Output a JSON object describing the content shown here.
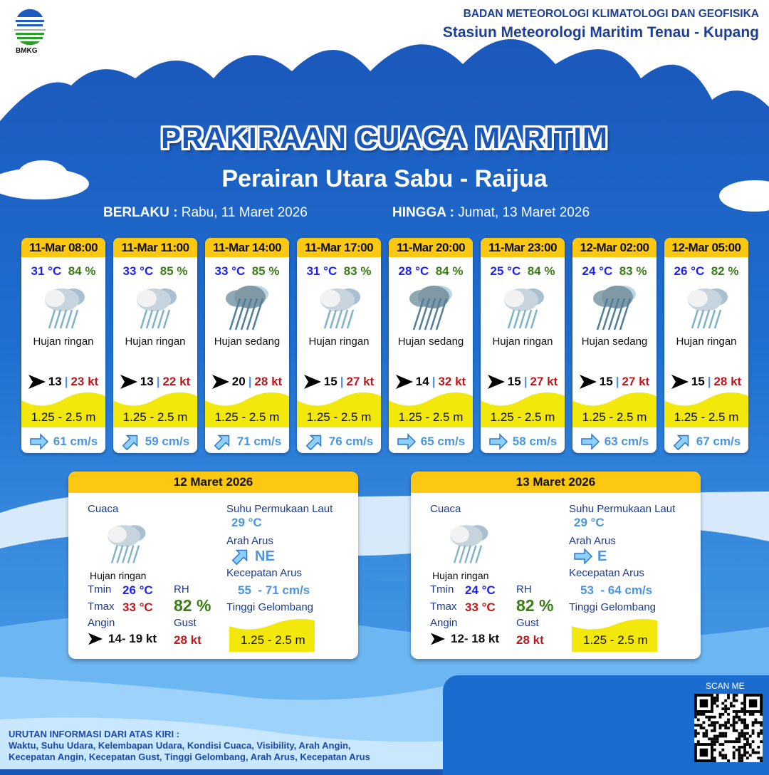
{
  "header": {
    "org": "BADAN METEOROLOGI KLIMATOLOGI DAN GEOFISIKA",
    "station": "Stasiun Meteorologi Maritim Tenau - Kupang",
    "logo_text": "BMKG"
  },
  "title": "PRAKIRAAN CUACA MARITIM",
  "area": "Perairan Utara Sabu - Raijua",
  "validity": {
    "from_label": "BERLAKU :",
    "from": "Rabu, 11 Maret 2026",
    "to_label": "HINGGA :",
    "to": "Jumat, 13 Maret 2026"
  },
  "colors": {
    "header_yellow": "#fcc812",
    "wave_yellow": "#f2e80c",
    "temp": "#1e22f0",
    "rh": "#3a7d14",
    "gust": "#c0171c",
    "current": "#4a95e0"
  },
  "forecasts": [
    {
      "time": "11-Mar 08:00",
      "temp": "31 °C",
      "rh": "84 %",
      "weather": "Hujan ringan",
      "icon": "light-rain",
      "wind_dir": "E",
      "wind": "13",
      "gust": "23 kt",
      "wave": "1.25 - 2.5 m",
      "current_dir": "E",
      "current": "61 cm/s"
    },
    {
      "time": "11-Mar 11:00",
      "temp": "33 °C",
      "rh": "85 %",
      "weather": "Hujan ringan",
      "icon": "light-rain",
      "wind_dir": "E",
      "wind": "13",
      "gust": "22 kt",
      "wave": "1.25 - 2.5 m",
      "current_dir": "NE",
      "current": "59 cm/s"
    },
    {
      "time": "11-Mar 14:00",
      "temp": "33 °C",
      "rh": "85 %",
      "weather": "Hujan sedang",
      "icon": "moderate-rain",
      "wind_dir": "E",
      "wind": "20",
      "gust": "28 kt",
      "wave": "1.25 - 2.5 m",
      "current_dir": "NE",
      "current": "71 cm/s"
    },
    {
      "time": "11-Mar 17:00",
      "temp": "31 °C",
      "rh": "83 %",
      "weather": "Hujan ringan",
      "icon": "light-rain",
      "wind_dir": "E",
      "wind": "15",
      "gust": "27 kt",
      "wave": "1.25 - 2.5 m",
      "current_dir": "NE",
      "current": "76 cm/s"
    },
    {
      "time": "11-Mar 20:00",
      "temp": "28 °C",
      "rh": "84 %",
      "weather": "Hujan sedang",
      "icon": "moderate-rain",
      "wind_dir": "E",
      "wind": "14",
      "gust": "32 kt",
      "wave": "1.25 - 2.5 m",
      "current_dir": "E",
      "current": "65 cm/s"
    },
    {
      "time": "11-Mar 23:00",
      "temp": "25 °C",
      "rh": "84 %",
      "weather": "Hujan ringan",
      "icon": "light-rain",
      "wind_dir": "E",
      "wind": "15",
      "gust": "27 kt",
      "wave": "1.25 - 2.5 m",
      "current_dir": "E",
      "current": "58 cm/s"
    },
    {
      "time": "12-Mar 02:00",
      "temp": "24 °C",
      "rh": "83 %",
      "weather": "Hujan sedang",
      "icon": "moderate-rain",
      "wind_dir": "E",
      "wind": "15",
      "gust": "27 kt",
      "wave": "1.25 - 2.5 m",
      "current_dir": "E",
      "current": "63 cm/s"
    },
    {
      "time": "12-Mar 05:00",
      "temp": "26 °C",
      "rh": "82 %",
      "weather": "Hujan ringan",
      "icon": "light-rain",
      "wind_dir": "E",
      "wind": "15",
      "gust": "28 kt",
      "wave": "1.25 - 2.5 m",
      "current_dir": "NE",
      "current": "67 cm/s"
    }
  ],
  "labels": {
    "weather": "Cuaca",
    "sst": "Suhu Permukaan Laut",
    "current_dir": "Arah Arus",
    "current_speed": "Kecepatan Arus",
    "wave": "Tinggi Gelombang",
    "tmin": "Tmin",
    "tmax": "Tmax",
    "rh": "RH",
    "wind": "Angin",
    "gust": "Gust"
  },
  "daily": [
    {
      "date": "12 Maret 2026",
      "weather": "Hujan ringan",
      "tmin": "26 °C",
      "tmax": "33 °C",
      "rh": "82 %",
      "wind": "14- 19 kt",
      "gust": "28 kt",
      "sst": "29 °C",
      "current_dir": "NE",
      "current_speed": "55  - 71 cm/s",
      "wave": "1.25 - 2.5 m"
    },
    {
      "date": "13 Maret 2026",
      "weather": "Hujan ringan",
      "tmin": "24 °C",
      "tmax": "33 °C",
      "rh": "82 %",
      "wind": "12- 18 kt",
      "gust": "28 kt",
      "sst": "29 °C",
      "current_dir": "E",
      "current_speed": "53  - 64 cm/s",
      "wave": "1.25 - 2.5 m"
    }
  ],
  "footer": {
    "legend_title": "URUTAN INFORMASI DARI ATAS KIRI :",
    "legend_line1": "Waktu, Suhu Udara, Kelembapan Udara, Kondisi Cuaca, Visibility, Arah Angin,",
    "legend_line2": "Kecepatan Angin, Kecepatan Gust, Tinggi Gelombang, Arah Arus, Kecepatan Arus",
    "scan_label": "SCAN ME"
  }
}
